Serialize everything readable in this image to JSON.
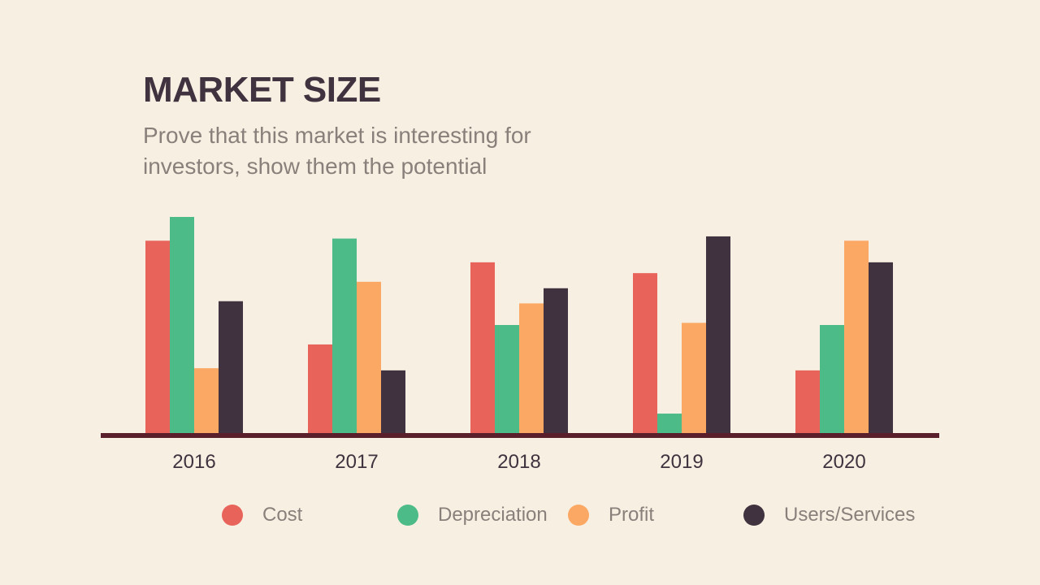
{
  "title": "MARKET SIZE",
  "subtitle": "Prove that this market is interesting for investors, show them the potential",
  "chart_data": {
    "type": "bar",
    "title": "",
    "xlabel": "",
    "ylabel": "",
    "ylim": [
      0,
      100
    ],
    "grid": false,
    "legend_position": "bottom",
    "categories": [
      "2016",
      "2017",
      "2018",
      "2019",
      "2020"
    ],
    "series": [
      {
        "name": "Cost",
        "color": "#e8635a",
        "values": [
          89,
          41,
          79,
          74,
          29
        ]
      },
      {
        "name": "Depreciation",
        "color": "#4cbb87",
        "values": [
          100,
          90,
          50,
          9,
          50
        ]
      },
      {
        "name": "Profit",
        "color": "#fca865",
        "values": [
          30,
          70,
          60,
          51,
          89
        ]
      },
      {
        "name": "Users/Services",
        "color": "#40323e",
        "values": [
          61,
          29,
          67,
          91,
          79
        ]
      }
    ],
    "baseline_color": "#5a1f2a"
  }
}
